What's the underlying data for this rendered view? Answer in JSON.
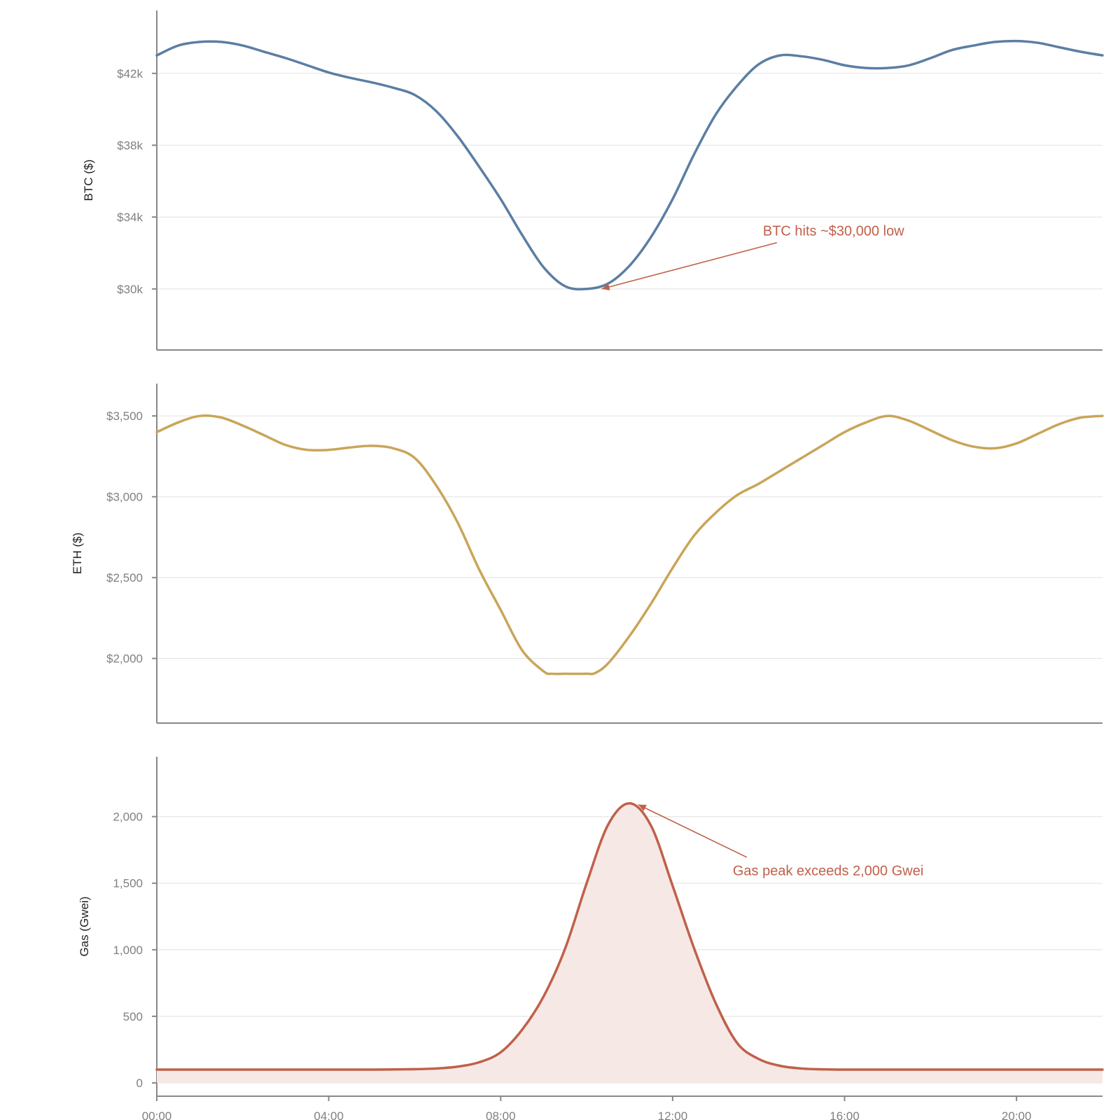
{
  "chart_data": [
    {
      "type": "line",
      "ylabel": "BTC ($)",
      "ylim": [
        26600,
        45500
      ],
      "yticks": [
        30000,
        34000,
        38000,
        42000
      ],
      "ytick_labels": [
        "$30k",
        "$34k",
        "$38k",
        "$42k"
      ],
      "grid": true,
      "color": "#5b7ea3",
      "x_hours": [
        0,
        0.5,
        1,
        1.5,
        2,
        2.5,
        3,
        3.5,
        4,
        4.5,
        5,
        5.5,
        6,
        6.5,
        7,
        7.5,
        8,
        8.5,
        9,
        9.5,
        10,
        10.5,
        11,
        11.5,
        12,
        12.5,
        13,
        13.5,
        14,
        14.5,
        15,
        15.5,
        16,
        16.5,
        17,
        17.5,
        18,
        18.5,
        19,
        19.5,
        20,
        20.5,
        21,
        21.5,
        22
      ],
      "values": [
        43000,
        43550,
        43750,
        43750,
        43550,
        43200,
        42850,
        42450,
        42050,
        41750,
        41500,
        41200,
        40800,
        39900,
        38500,
        36800,
        35000,
        33000,
        31200,
        30150,
        30000,
        30300,
        31300,
        32900,
        35000,
        37500,
        39700,
        41300,
        42500,
        43000,
        42950,
        42750,
        42450,
        42300,
        42300,
        42450,
        42850,
        43300,
        43550,
        43750,
        43800,
        43700,
        43450,
        43200,
        43000
      ],
      "annotation": {
        "text": "BTC hits ~$30,000 low",
        "x": 10.35,
        "y": 30000,
        "text_x": 14.1,
        "text_y": 32500,
        "color": "#c0604a"
      }
    },
    {
      "type": "line",
      "ylabel": "ETH ($)",
      "ylim": [
        1600,
        3700
      ],
      "yticks": [
        2000,
        2500,
        3000,
        3500
      ],
      "ytick_labels": [
        "$2,000",
        "$2,500",
        "$3,000",
        "$3,500"
      ],
      "grid": true,
      "color": "#c9a558",
      "x_hours": [
        0,
        0.5,
        1,
        1.5,
        2,
        2.5,
        3,
        3.5,
        4,
        4.5,
        5,
        5.5,
        6,
        6.5,
        7,
        7.5,
        8,
        8.5,
        9,
        9.2,
        9.5,
        10,
        10.2,
        10.5,
        11,
        11.5,
        12,
        12.5,
        13,
        13.5,
        14,
        14.5,
        15,
        15.5,
        16,
        16.5,
        17,
        17.5,
        18,
        18.5,
        19,
        19.5,
        20,
        20.5,
        21,
        21.5,
        22
      ],
      "values": [
        3400,
        3460,
        3500,
        3490,
        3440,
        3380,
        3320,
        3290,
        3290,
        3305,
        3315,
        3300,
        3240,
        3070,
        2840,
        2550,
        2300,
        2050,
        1920,
        1905,
        1905,
        1905,
        1910,
        1970,
        2140,
        2340,
        2560,
        2760,
        2900,
        3010,
        3080,
        3160,
        3240,
        3320,
        3400,
        3460,
        3500,
        3470,
        3410,
        3350,
        3310,
        3300,
        3330,
        3390,
        3450,
        3490,
        3500
      ],
      "annotation": null
    },
    {
      "type": "area",
      "ylabel": "Gas (Gwei)",
      "ylim": [
        -100,
        2450
      ],
      "yticks": [
        0,
        500,
        1000,
        1500,
        2000
      ],
      "ytick_labels": [
        "0",
        "500",
        "1,000",
        "1,500",
        "2,000"
      ],
      "grid": true,
      "color": "#c0604a",
      "fill_color": "#f5e8e5",
      "x_hours": [
        0,
        1,
        2,
        3,
        4,
        5,
        6,
        6.5,
        7,
        7.5,
        8,
        8.5,
        9,
        9.5,
        10,
        10.5,
        11,
        11.5,
        12,
        12.5,
        13,
        13.5,
        14,
        14.5,
        15,
        15.5,
        16,
        17,
        18,
        19,
        20,
        21,
        22
      ],
      "x_labels": [
        "00:00",
        "04:00",
        "08:00",
        "12:00",
        "16:00",
        "20:00"
      ],
      "x_label_hours": [
        0,
        4,
        8,
        12,
        16,
        20
      ],
      "values": [
        100,
        100,
        100,
        100,
        100,
        100,
        103,
        108,
        122,
        155,
        230,
        400,
        650,
        1010,
        1500,
        1940,
        2100,
        1930,
        1480,
        1010,
        600,
        300,
        180,
        128,
        108,
        102,
        100,
        100,
        100,
        100,
        100,
        100,
        100
      ],
      "annotation": {
        "text": "Gas peak exceeds 2,000 Gwei",
        "x": 11.2,
        "y": 2090,
        "text_x": 13.4,
        "text_y": 1600,
        "color": "#c0604a"
      }
    }
  ]
}
